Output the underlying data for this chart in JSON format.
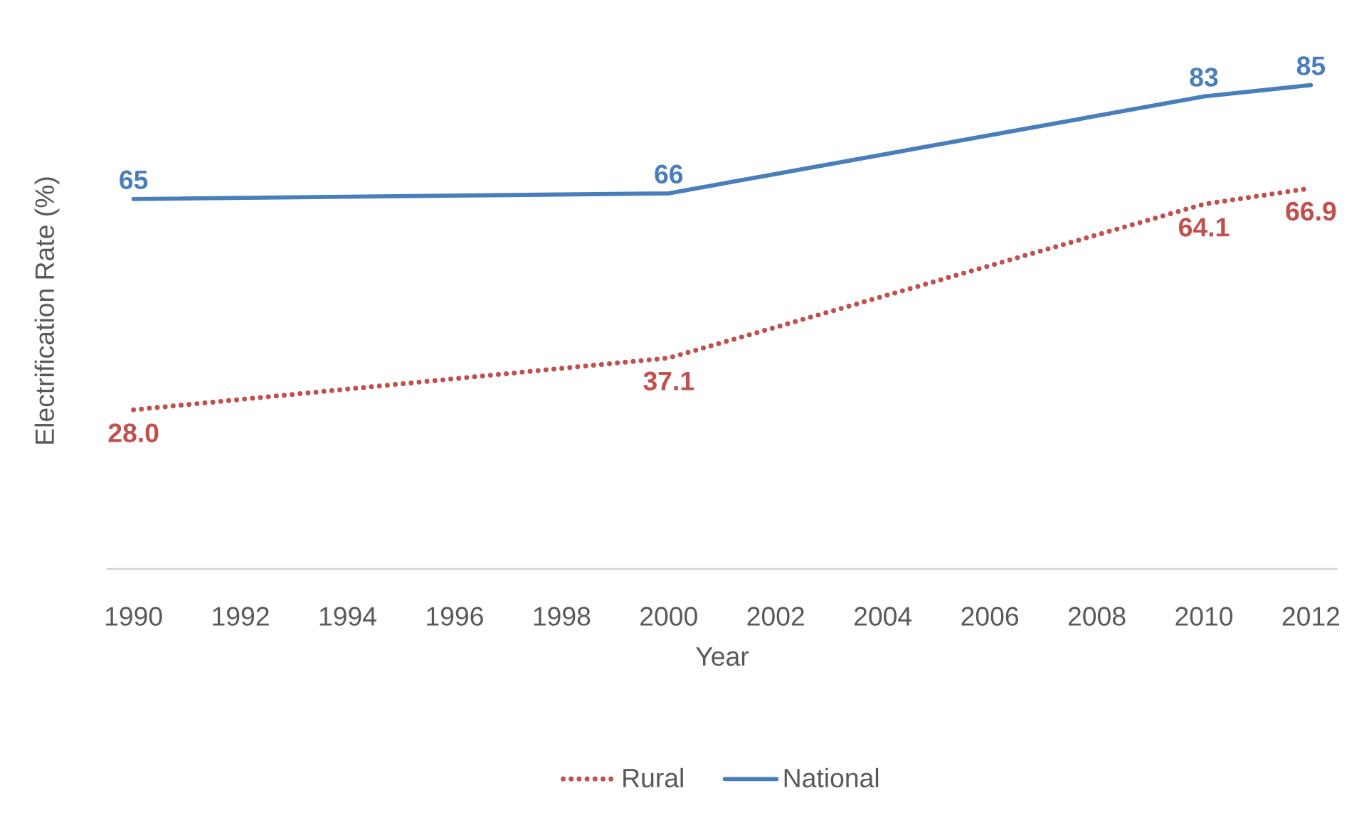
{
  "chart_data": {
    "type": "line",
    "xlabel": "Year",
    "ylabel": "Electrification Rate (%)",
    "xlim": [
      1989.5,
      2012.5
    ],
    "xticks": [
      1990,
      1992,
      1994,
      1996,
      1998,
      2000,
      2002,
      2004,
      2006,
      2008,
      2010,
      2012
    ],
    "x": [
      1990,
      2000,
      2010,
      2012
    ],
    "series": [
      {
        "name": "Rural",
        "color": "#c0504d",
        "line_style": "dotted",
        "values": [
          28.0,
          37.1,
          64.1,
          66.9
        ],
        "value_labels": [
          "28.0",
          "37.1",
          "64.1",
          "66.9"
        ]
      },
      {
        "name": "National",
        "color": "#4a7ebb",
        "line_style": "solid",
        "values": [
          65,
          66,
          83,
          85
        ],
        "value_labels": [
          "65",
          "66",
          "83",
          "85"
        ]
      }
    ],
    "legend": "bottom",
    "grid": false,
    "tick_labels": "x"
  }
}
